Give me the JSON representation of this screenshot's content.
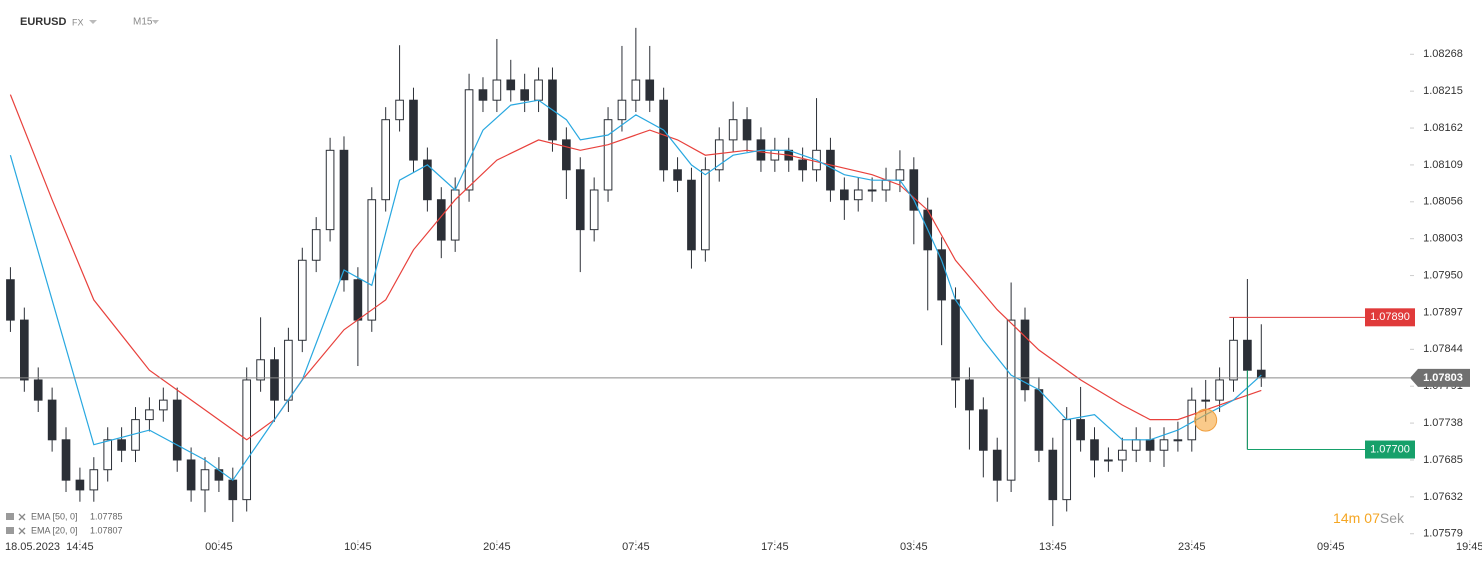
{
  "chart_data": {
    "type": "candlestick",
    "symbol": "EURUSD",
    "market": "FX",
    "interval": "M15",
    "date_label": "18.05.2023",
    "xlim": [
      -0.75,
      100.7
    ],
    "ylim": [
      1.0757,
      1.08346
    ],
    "xticks": [
      {
        "value": 5,
        "label": "14:45"
      },
      {
        "value": 15,
        "label": "00:45"
      },
      {
        "value": 25,
        "label": "10:45"
      },
      {
        "value": 35,
        "label": "20:45"
      },
      {
        "value": 45,
        "label": "07:45"
      },
      {
        "value": 55,
        "label": "17:45"
      },
      {
        "value": 65,
        "label": "03:45"
      },
      {
        "value": 75,
        "label": "13:45"
      },
      {
        "value": 85,
        "label": "23:45"
      },
      {
        "value": 95,
        "label": "09:45"
      },
      {
        "value": 105,
        "label": "19:45"
      }
    ],
    "yticks": [
      1.08268,
      1.08215,
      1.08162,
      1.08109,
      1.08056,
      1.08003,
      {
        "value": 1.0795,
        "label": "1.07950"
      },
      1.07897,
      1.07844,
      1.07791,
      1.07738,
      1.07685,
      1.07632,
      1.07579
    ],
    "up_color": "#ffffff",
    "down_color": "#2b2f36",
    "open": [
      1.07944,
      1.07886,
      1.078,
      1.07771,
      1.07714,
      1.07656,
      1.07642,
      1.07671,
      1.07714,
      1.07699,
      1.07743,
      1.07757,
      1.07771,
      1.07685,
      1.07642,
      1.07671,
      1.07656,
      1.07628,
      1.078,
      1.07829,
      1.07771,
      1.07857,
      1.07972,
      1.08016,
      1.0813,
      1.07944,
      1.07886,
      1.08059,
      1.08174,
      1.08202,
      1.08116,
      1.08059,
      1.08001,
      1.08073,
      1.08217,
      1.08202,
      1.08231,
      1.08217,
      1.08202,
      1.08231,
      1.08145,
      1.08102,
      1.08016,
      1.08073,
      1.08174,
      1.08202,
      1.08231,
      1.08202,
      1.08102,
      1.08087,
      1.07987,
      1.08102,
      1.08145,
      1.08174,
      1.08145,
      1.08116,
      1.0813,
      1.08116,
      1.08102,
      1.0813,
      1.08073,
      1.08059,
      1.08073,
      1.08073,
      1.08087,
      1.08102,
      1.08044,
      1.07987,
      1.07915,
      1.078,
      1.07757,
      1.07699,
      1.07656,
      1.07886,
      1.07786,
      1.07699,
      1.07628,
      1.07743,
      1.07714,
      1.07685,
      1.07685,
      1.07699,
      1.07714,
      1.07699,
      1.07714,
      1.07714,
      1.07771,
      1.07771,
      1.078,
      1.07857,
      1.07814
    ],
    "high": [
      1.07962,
      1.07904,
      1.07818,
      1.07789,
      1.07732,
      1.07674,
      1.07689,
      1.07732,
      1.07732,
      1.07761,
      1.07775,
      1.07789,
      1.07789,
      1.07703,
      1.07689,
      1.07689,
      1.07674,
      1.07818,
      1.0789,
      1.07847,
      1.07875,
      1.0799,
      1.08034,
      1.08148,
      1.0815,
      1.07962,
      1.08077,
      1.08192,
      1.08281,
      1.0822,
      1.08134,
      1.08077,
      1.08091,
      1.0824,
      1.08235,
      1.0829,
      1.0826,
      1.0824,
      1.08249,
      1.08249,
      1.08163,
      1.0812,
      1.08091,
      1.08192,
      1.0828,
      1.08306,
      1.0828,
      1.0822,
      1.0812,
      1.08105,
      1.0812,
      1.08163,
      1.082,
      1.08192,
      1.08163,
      1.08148,
      1.08148,
      1.08134,
      1.08205,
      1.08148,
      1.08091,
      1.08091,
      1.08091,
      1.08105,
      1.0813,
      1.0812,
      1.08062,
      1.08005,
      1.07933,
      1.07818,
      1.07775,
      1.07717,
      1.0794,
      1.07904,
      1.07804,
      1.07717,
      1.07761,
      1.0779,
      1.07732,
      1.07703,
      1.07717,
      1.07732,
      1.07732,
      1.07732,
      1.0774,
      1.07789,
      1.078,
      1.07818,
      1.0789,
      1.07945,
      1.0788
    ],
    "low": [
      1.07869,
      1.07783,
      1.07754,
      1.07697,
      1.07639,
      1.07625,
      1.07625,
      1.07654,
      1.07682,
      1.07682,
      1.07726,
      1.0774,
      1.07668,
      1.07625,
      1.0761,
      1.07639,
      1.07596,
      1.07611,
      1.07783,
      1.0774,
      1.07754,
      1.0784,
      1.07955,
      1.07999,
      1.07927,
      1.0782,
      1.07869,
      1.08042,
      1.08157,
      1.08099,
      1.08042,
      1.07975,
      1.07984,
      1.08056,
      1.08185,
      1.08185,
      1.082,
      1.08185,
      1.08185,
      1.08128,
      1.0806,
      1.07955,
      1.07999,
      1.08056,
      1.08157,
      1.08185,
      1.08185,
      1.08085,
      1.0807,
      1.0796,
      1.0797,
      1.08085,
      1.08128,
      1.08128,
      1.08099,
      1.08099,
      1.08099,
      1.08085,
      1.08085,
      1.08056,
      1.0803,
      1.08042,
      1.08056,
      1.08056,
      1.0807,
      1.07995,
      1.079,
      1.0785,
      1.0776,
      1.077,
      1.0766,
      1.07625,
      1.07639,
      1.07769,
      1.07682,
      1.0759,
      1.07611,
      1.07697,
      1.0766,
      1.07668,
      1.07668,
      1.07682,
      1.07682,
      1.07675,
      1.07697,
      1.07697,
      1.0774,
      1.07754,
      1.07783,
      1.077,
      1.0779
    ],
    "close": [
      1.07886,
      1.078,
      1.07771,
      1.07714,
      1.07656,
      1.07642,
      1.07671,
      1.07714,
      1.07699,
      1.07743,
      1.07757,
      1.07771,
      1.07685,
      1.07642,
      1.07671,
      1.07656,
      1.07628,
      1.078,
      1.07829,
      1.07771,
      1.07857,
      1.07972,
      1.08016,
      1.0813,
      1.07944,
      1.07886,
      1.08059,
      1.08174,
      1.08202,
      1.08116,
      1.08059,
      1.08001,
      1.08073,
      1.08217,
      1.08202,
      1.08231,
      1.08217,
      1.08202,
      1.08231,
      1.08145,
      1.08102,
      1.08016,
      1.08073,
      1.08174,
      1.08202,
      1.08231,
      1.08202,
      1.08102,
      1.08087,
      1.07987,
      1.08102,
      1.08145,
      1.08174,
      1.08145,
      1.08116,
      1.0813,
      1.08116,
      1.08102,
      1.0813,
      1.08073,
      1.08059,
      1.08073,
      1.08073,
      1.08087,
      1.08102,
      1.08044,
      1.07987,
      1.07915,
      1.078,
      1.07757,
      1.07699,
      1.07656,
      1.07886,
      1.07786,
      1.07699,
      1.07628,
      1.07743,
      1.07714,
      1.07685,
      1.07685,
      1.07699,
      1.07714,
      1.07699,
      1.07714,
      1.07714,
      1.07771,
      1.07771,
      1.078,
      1.07857,
      1.07814,
      1.07803
    ],
    "series": [
      {
        "name": "EMA [50, 0]",
        "color": "#e8413c",
        "x": [
          0,
          3,
          6,
          10,
          14,
          17,
          19,
          21,
          24,
          27,
          29,
          32,
          35,
          38,
          41,
          43,
          46,
          48,
          50,
          53,
          56,
          59,
          62,
          64,
          66,
          68,
          71,
          74,
          77,
          80,
          82,
          84,
          86,
          88,
          90
        ],
        "values": [
          1.0821,
          1.08059,
          1.07915,
          1.07814,
          1.07757,
          1.07714,
          1.07743,
          1.078,
          1.07872,
          1.07915,
          1.07987,
          1.08059,
          1.08116,
          1.08145,
          1.0813,
          1.08138,
          1.08159,
          1.08145,
          1.08123,
          1.0813,
          1.08123,
          1.08109,
          1.08095,
          1.0808,
          1.08044,
          1.07972,
          1.07901,
          1.07843,
          1.078,
          1.07764,
          1.07743,
          1.07743,
          1.07757,
          1.07771,
          1.07785
        ]
      },
      {
        "name": "EMA [20, 0]",
        "color": "#29a8e0",
        "x": [
          0,
          6,
          10,
          14,
          16,
          19,
          21,
          24,
          26,
          28,
          30,
          32,
          34,
          36,
          38,
          40,
          41,
          43,
          45,
          47,
          49,
          50,
          52,
          54,
          56,
          58,
          60,
          62,
          64,
          65,
          66,
          67,
          68,
          70,
          72,
          74,
          76,
          78,
          80,
          82,
          84,
          86,
          88,
          90
        ],
        "values": [
          1.08123,
          1.07707,
          1.07728,
          1.07685,
          1.07656,
          1.07743,
          1.078,
          1.07958,
          1.07936,
          1.08087,
          1.08109,
          1.08073,
          1.08159,
          1.08195,
          1.08202,
          1.08174,
          1.08145,
          1.08152,
          1.08181,
          1.08159,
          1.08109,
          1.08095,
          1.08123,
          1.0813,
          1.0813,
          1.08116,
          1.08095,
          1.08087,
          1.08087,
          1.08059,
          1.08016,
          1.07972,
          1.07915,
          1.07857,
          1.07807,
          1.07786,
          1.07743,
          1.0775,
          1.07714,
          1.07714,
          1.07728,
          1.0775,
          1.07771,
          1.07807
        ]
      }
    ],
    "levels": [
      {
        "value": 1.0789,
        "label": "1.07890",
        "color": "#e03a3a",
        "from": 87.7
      },
      {
        "value": 1.077,
        "label": "1.07700",
        "color": "#16a06a",
        "from": 89
      }
    ],
    "timer": {
      "minutes": "14",
      "minutes_unit": "m",
      "seconds": "07",
      "seconds_unit": "Sek"
    }
  }
}
